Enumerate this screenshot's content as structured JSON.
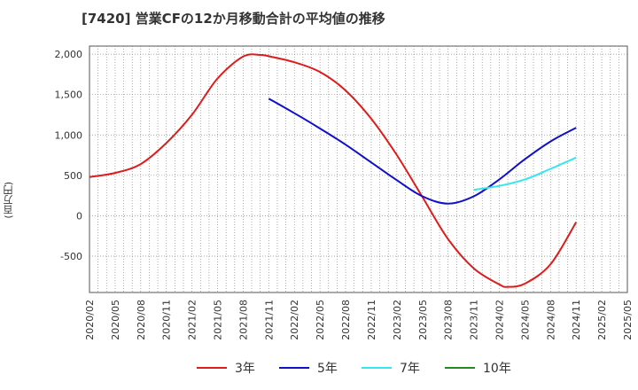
{
  "title": "[7420]  営業CFの12か月移動合計の平均値の推移",
  "y_unit": "(百万円)",
  "chart_data": {
    "type": "line",
    "title": "[7420]  営業CFの12か月移動合計の平均値の推移",
    "ylabel": "(百万円)",
    "xlabel": "",
    "ylim": [
      -950,
      2100
    ],
    "y_ticks": [
      2000,
      1500,
      1000,
      500,
      0,
      -500
    ],
    "y_tick_labels": [
      "2,000",
      "1,500",
      "1,000",
      "500",
      "0",
      "-500"
    ],
    "x_ticks": [
      "2020/02",
      "2020/05",
      "2020/08",
      "2020/11",
      "2021/02",
      "2021/05",
      "2021/08",
      "2021/11",
      "2022/02",
      "2022/05",
      "2022/08",
      "2022/11",
      "2023/02",
      "2023/05",
      "2023/08",
      "2023/11",
      "2024/02",
      "2024/05",
      "2024/08",
      "2024/11",
      "2025/02",
      "2025/05"
    ],
    "grid": true,
    "legend_position": "bottom",
    "series": [
      {
        "name": "3年",
        "color": "#dd1c1c",
        "points": [
          [
            "2020/02",
            480
          ],
          [
            "2020/05",
            530
          ],
          [
            "2020/08",
            640
          ],
          [
            "2020/11",
            900
          ],
          [
            "2021/02",
            1250
          ],
          [
            "2021/05",
            1700
          ],
          [
            "2021/08",
            1970
          ],
          [
            "2021/10",
            1990
          ],
          [
            "2021/11",
            1975
          ],
          [
            "2022/02",
            1900
          ],
          [
            "2022/05",
            1780
          ],
          [
            "2022/08",
            1550
          ],
          [
            "2022/11",
            1200
          ],
          [
            "2023/02",
            750
          ],
          [
            "2023/05",
            230
          ],
          [
            "2023/08",
            -290
          ],
          [
            "2023/11",
            -650
          ],
          [
            "2024/02",
            -850
          ],
          [
            "2024/03",
            -880
          ],
          [
            "2024/05",
            -840
          ],
          [
            "2024/08",
            -600
          ],
          [
            "2024/11",
            -80
          ]
        ]
      },
      {
        "name": "5年",
        "color": "#1010c8",
        "points": [
          [
            "2021/11",
            1450
          ],
          [
            "2022/02",
            1270
          ],
          [
            "2022/05",
            1080
          ],
          [
            "2022/08",
            880
          ],
          [
            "2022/11",
            660
          ],
          [
            "2023/02",
            440
          ],
          [
            "2023/05",
            240
          ],
          [
            "2023/08",
            150
          ],
          [
            "2023/11",
            240
          ],
          [
            "2024/02",
            450
          ],
          [
            "2024/05",
            700
          ],
          [
            "2024/08",
            920
          ],
          [
            "2024/11",
            1090
          ]
        ]
      },
      {
        "name": "7年",
        "color": "#33e6f0",
        "points": [
          [
            "2023/11",
            320
          ],
          [
            "2024/02",
            370
          ],
          [
            "2024/05",
            450
          ],
          [
            "2024/08",
            580
          ],
          [
            "2024/11",
            720
          ]
        ]
      },
      {
        "name": "10年",
        "color": "#228b22",
        "points": []
      }
    ]
  }
}
